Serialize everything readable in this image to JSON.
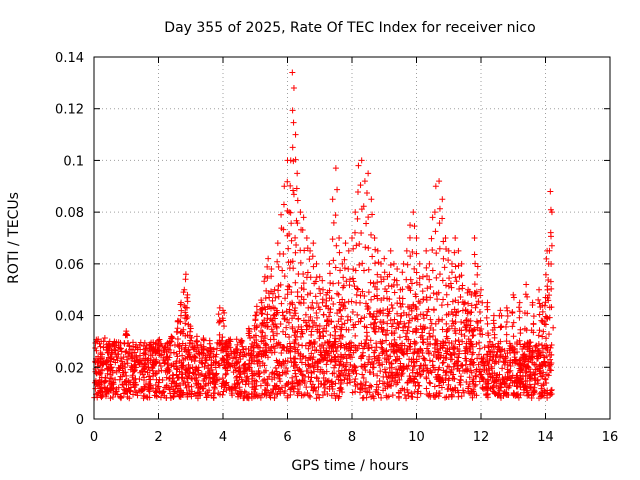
{
  "chart_data": {
    "type": "scatter",
    "title": "Day 355 of 2025, Rate Of TEC Index for receiver nico",
    "xlabel": "GPS time / hours",
    "ylabel": "ROTI / TECUs",
    "xlim": [
      0,
      16
    ],
    "ylim": [
      0,
      0.14
    ],
    "x_ticks": [
      0,
      2,
      4,
      6,
      8,
      10,
      12,
      14,
      16
    ],
    "y_ticks": [
      0,
      0.02,
      0.04,
      0.06,
      0.08,
      0.1,
      0.12,
      0.14
    ],
    "x_tick_labels": [
      "0",
      "2",
      "4",
      "6",
      "8",
      "10",
      "12",
      "14",
      "16"
    ],
    "y_tick_labels": [
      "0",
      "0.02",
      "0.04",
      "0.06",
      "0.08",
      "0.1",
      "0.12",
      "0.14"
    ],
    "grid": true,
    "marker": "plus",
    "color": "#ff0000",
    "series": [
      {
        "name": "ROTI",
        "x": [
          0.05,
          0.1,
          0.15,
          0.2,
          0.25,
          0.3,
          0.35,
          0.5,
          0.7,
          0.9,
          1.0,
          1.2,
          1.4,
          1.6,
          1.8,
          2.0,
          2.2,
          2.4,
          2.6,
          2.7,
          2.8,
          2.85,
          2.9,
          3.0,
          3.2,
          3.4,
          3.6,
          3.8,
          3.9,
          4.0,
          4.2,
          4.4,
          4.6,
          4.8,
          5.0,
          5.2,
          5.3,
          5.4,
          5.5,
          5.6,
          5.7,
          5.8,
          5.9,
          6.0,
          6.05,
          6.1,
          6.15,
          6.2,
          6.25,
          6.3,
          6.4,
          6.5,
          6.6,
          6.7,
          6.8,
          6.9,
          7.0,
          7.1,
          7.2,
          7.3,
          7.4,
          7.5,
          7.6,
          7.7,
          7.8,
          7.9,
          8.0,
          8.1,
          8.2,
          8.3,
          8.4,
          8.5,
          8.6,
          8.7,
          8.8,
          8.9,
          9.0,
          9.1,
          9.2,
          9.3,
          9.4,
          9.5,
          9.6,
          9.7,
          9.8,
          9.9,
          10.0,
          10.1,
          10.2,
          10.3,
          10.4,
          10.5,
          10.6,
          10.7,
          10.8,
          10.9,
          11.0,
          11.1,
          11.2,
          11.3,
          11.4,
          11.5,
          11.6,
          11.7,
          11.8,
          11.9,
          12.0,
          12.2,
          12.4,
          12.6,
          12.8,
          13.0,
          13.2,
          13.4,
          13.6,
          13.8,
          13.9,
          14.0,
          14.05,
          14.1,
          14.15,
          14.2
        ],
        "y": [
          0.022,
          0.03,
          0.018,
          0.028,
          0.025,
          0.03,
          0.016,
          0.02,
          0.024,
          0.018,
          0.034,
          0.02,
          0.022,
          0.025,
          0.02,
          0.027,
          0.022,
          0.03,
          0.038,
          0.045,
          0.05,
          0.056,
          0.048,
          0.035,
          0.03,
          0.028,
          0.026,
          0.025,
          0.043,
          0.042,
          0.03,
          0.027,
          0.028,
          0.035,
          0.04,
          0.045,
          0.055,
          0.062,
          0.058,
          0.05,
          0.068,
          0.079,
          0.09,
          0.1,
          0.08,
          0.1,
          0.134,
          0.128,
          0.11,
          0.095,
          0.08,
          0.078,
          0.07,
          0.065,
          0.068,
          0.06,
          0.055,
          0.05,
          0.048,
          0.06,
          0.085,
          0.097,
          0.07,
          0.06,
          0.068,
          0.065,
          0.07,
          0.08,
          0.098,
          0.1,
          0.092,
          0.095,
          0.085,
          0.07,
          0.065,
          0.06,
          0.062,
          0.055,
          0.065,
          0.06,
          0.058,
          0.05,
          0.06,
          0.065,
          0.075,
          0.08,
          0.07,
          0.06,
          0.055,
          0.065,
          0.06,
          0.078,
          0.09,
          0.092,
          0.085,
          0.07,
          0.065,
          0.06,
          0.07,
          0.065,
          0.06,
          0.045,
          0.05,
          0.048,
          0.07,
          0.059,
          0.05,
          0.045,
          0.04,
          0.042,
          0.043,
          0.048,
          0.045,
          0.052,
          0.045,
          0.05,
          0.044,
          0.047,
          0.065,
          0.06,
          0.088,
          0.08
        ]
      }
    ],
    "baseline_band": {
      "x_range": [
        0,
        14.2
      ],
      "y_range": [
        0.008,
        0.03
      ]
    }
  }
}
